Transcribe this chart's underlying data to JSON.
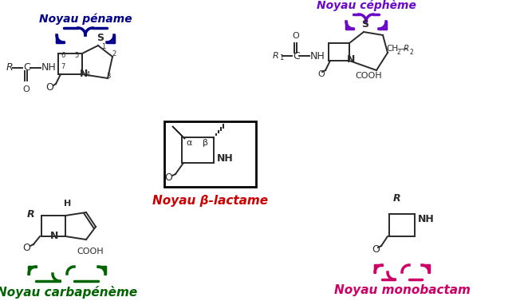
{
  "bg_color": "#ffffff",
  "pename_label": "Noyau péname",
  "pename_color": "#00008B",
  "cepheme_label": "Noyau céphème",
  "cepheme_color": "#6B0AC9",
  "betalactame_label": "Noyau β-lactame",
  "betalactame_color": "#CC0000",
  "carbapenem_label": "Noyau carbapénème",
  "carbapenem_color": "#006400",
  "monobactam_label": "Noyau monobactam",
  "monobactam_color": "#CC0066"
}
